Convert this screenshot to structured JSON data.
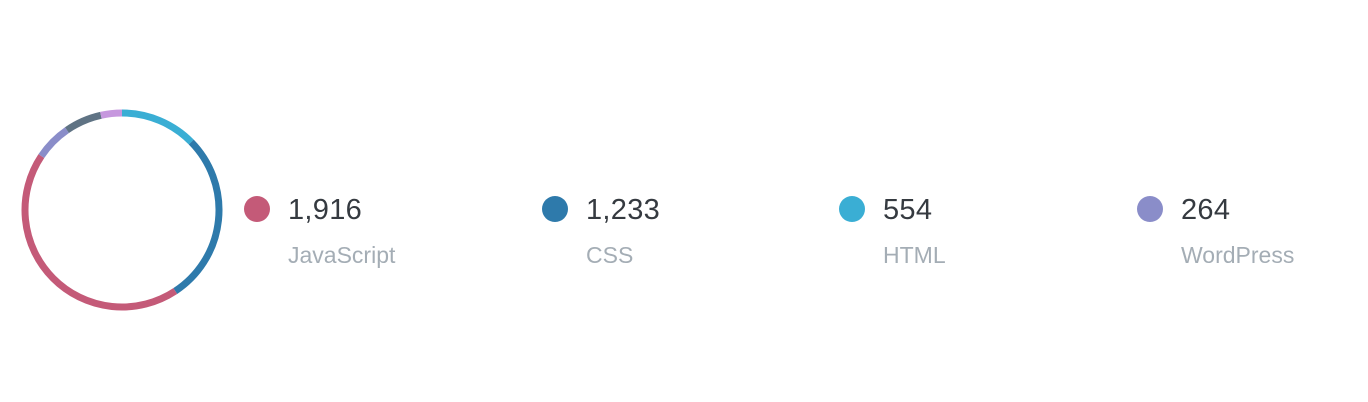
{
  "chart_data": {
    "type": "pie",
    "donut": true,
    "legend_position": "right",
    "slices": [
      {
        "label": "JavaScript",
        "value_text": "1,916",
        "value": 1916,
        "color": "#c45a78",
        "share": 0.5
      },
      {
        "label": "CSS",
        "value_text": "1,233",
        "value": 1233,
        "color": "#2e7aab",
        "share": 0.322
      },
      {
        "label": "HTML",
        "value_text": "554",
        "value": 554,
        "color": "#3aaed4",
        "share": 0.145
      },
      {
        "label": "WordPress",
        "value_text": "264",
        "value": 264,
        "color": "#8a8dc9",
        "share": 0.069
      }
    ],
    "unlabeled_slices": [
      {
        "color": "#5f7384",
        "share": 0.07
      },
      {
        "color": "#c697de",
        "share": 0.04
      }
    ]
  }
}
